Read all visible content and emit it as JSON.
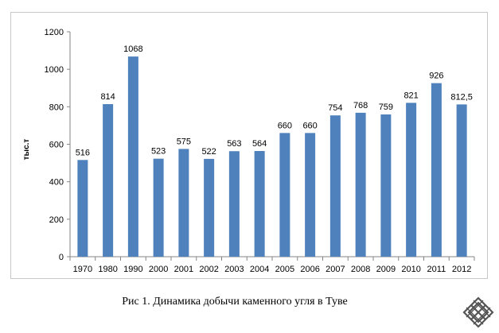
{
  "caption": "Рис 1. Динамика добычи каменного угля в Туве",
  "logo_icon": "endless-knot-icon",
  "colors": {
    "bar": "#4f81bd",
    "axis": "#868686",
    "frame": "#c8c8c8"
  },
  "chart_data": {
    "type": "bar",
    "title": "",
    "xlabel": "",
    "ylabel": "тыс.т",
    "categories": [
      "1970",
      "1980",
      "1990",
      "2000",
      "2001",
      "2002",
      "2003",
      "2004",
      "2005",
      "2006",
      "2007",
      "2008",
      "2009",
      "2010",
      "2011",
      "2012"
    ],
    "values": [
      516,
      814,
      1068,
      523,
      575,
      522,
      563,
      564,
      660,
      660,
      754,
      768,
      759,
      821,
      926,
      812.5
    ],
    "data_labels": [
      "516",
      "814",
      "1068",
      "523",
      "575",
      "522",
      "563",
      "564",
      "660",
      "660",
      "754",
      "768",
      "759",
      "821",
      "926",
      "812,5"
    ],
    "ylim": [
      0,
      1200
    ],
    "yticks": [
      0,
      200,
      400,
      600,
      800,
      1000,
      1200
    ],
    "grid": false,
    "legend": "none"
  }
}
